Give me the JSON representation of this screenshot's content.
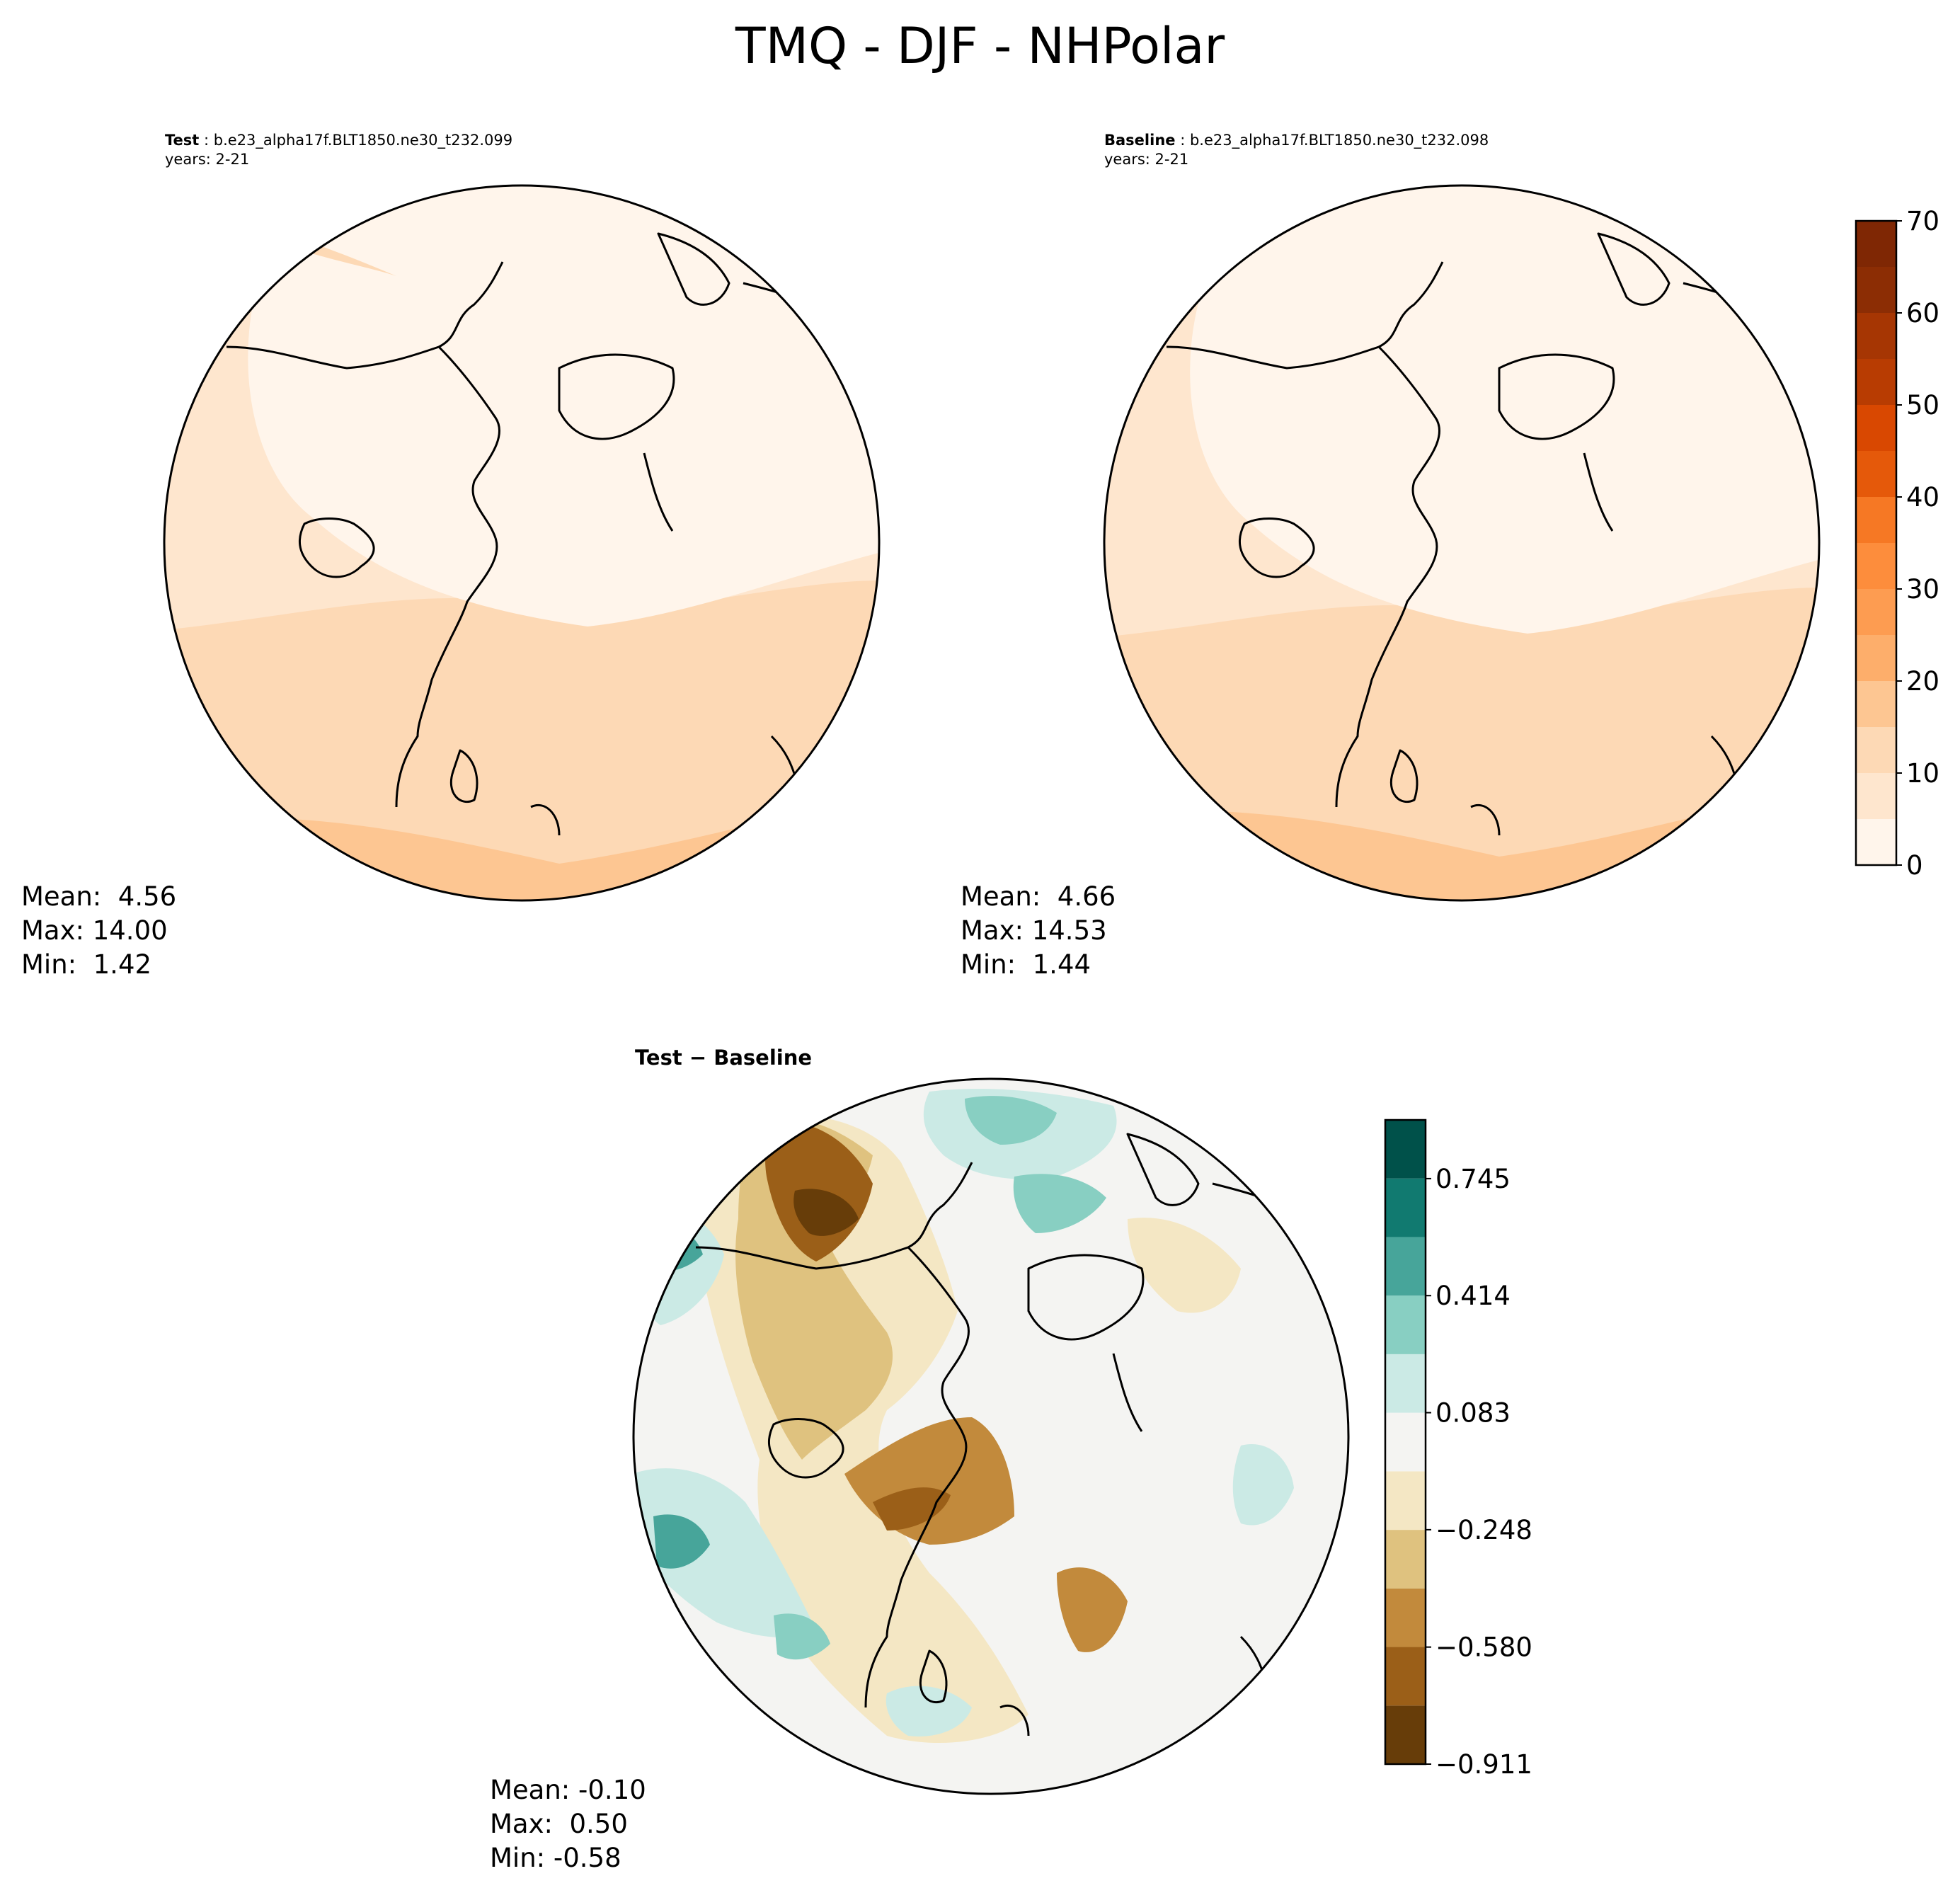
{
  "title": "TMQ - DJF - NHPolar",
  "panels": {
    "test": {
      "label": "Test",
      "case": "b.e23_alpha17f.BLT1850.ne30_t232.099",
      "years": "years: 2-21",
      "stats": {
        "mean": "Mean:  4.56",
        "max": "Max: 14.00",
        "min": "Min:  1.42"
      }
    },
    "baseline": {
      "label": "Baseline",
      "case": "b.e23_alpha17f.BLT1850.ne30_t232.098",
      "years": "years: 2-21",
      "stats": {
        "mean": "Mean:  4.66",
        "max": "Max: 14.53",
        "min": "Min:  1.44"
      }
    },
    "diff": {
      "label": "Test − Baseline",
      "stats": {
        "mean": "Mean: -0.10",
        "max": "Max:  0.50",
        "min": "Min: -0.58"
      }
    }
  },
  "chart_data": [
    {
      "type": "heatmap",
      "name": "Test",
      "projection": "north-polar-stereographic",
      "colorbar": {
        "cmap": "Oranges",
        "levels": [
          0,
          5,
          10,
          15,
          20,
          25,
          30,
          35,
          40,
          45,
          50,
          55,
          60,
          65,
          70
        ],
        "ticks": [
          0,
          10,
          20,
          30,
          40,
          50,
          60,
          70
        ],
        "colors": [
          "#fff5eb",
          "#fee6ce",
          "#fdd9b5",
          "#fdc692",
          "#fdae6b",
          "#fd9c51",
          "#fd8d3c",
          "#f67824",
          "#e5590a",
          "#d94801",
          "#b83c02",
          "#a63603",
          "#8c2d04",
          "#7f2704"
        ]
      },
      "stats": {
        "mean": 4.56,
        "max": 14.0,
        "min": 1.42
      }
    },
    {
      "type": "heatmap",
      "name": "Baseline",
      "projection": "north-polar-stereographic",
      "colorbar": "shared with Test",
      "stats": {
        "mean": 4.66,
        "max": 14.53,
        "min": 1.44
      }
    },
    {
      "type": "heatmap",
      "name": "Test − Baseline",
      "projection": "north-polar-stereographic",
      "colorbar": {
        "cmap": "BrBG",
        "ticks": [
          -0.911,
          -0.58,
          -0.248,
          0.083,
          0.414,
          0.745
        ],
        "tick_labels": [
          "−0.911",
          "−0.580",
          "−0.248",
          "0.083",
          "0.414",
          "0.745"
        ],
        "range": [
          -0.911,
          0.911
        ],
        "colors": [
          "#673d09",
          "#9b5f18",
          "#c28a3c",
          "#dfc27f",
          "#f4e7c4",
          "#f4f4f2",
          "#cbeae5",
          "#88cfc2",
          "#47a59a",
          "#117a70",
          "#00514a"
        ]
      },
      "stats": {
        "mean": -0.1,
        "max": 0.5,
        "min": -0.58
      }
    }
  ]
}
